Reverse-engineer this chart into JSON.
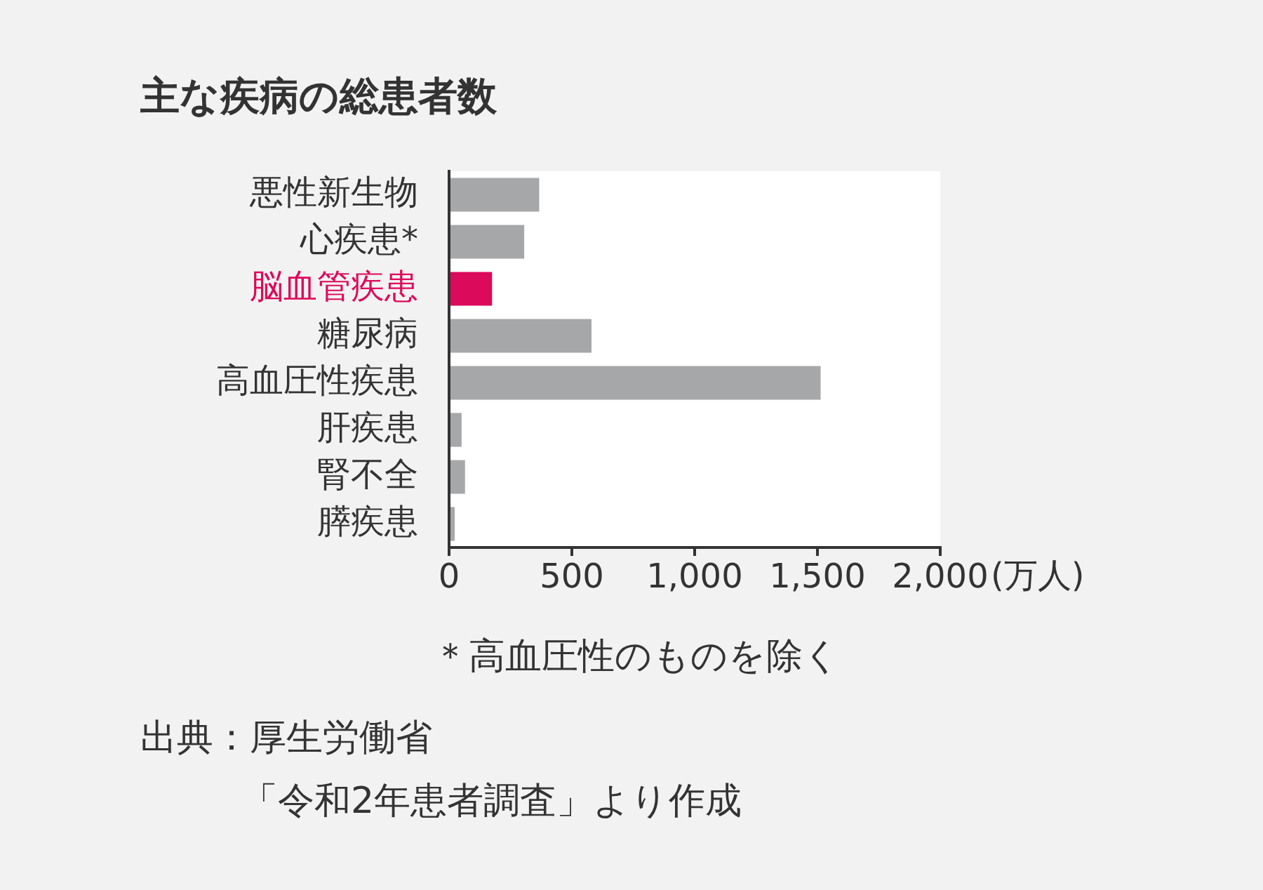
{
  "chart_data": {
    "type": "bar",
    "orientation": "horizontal",
    "title": "主な疾病の総患者数",
    "xlabel": "(万人)",
    "categories": [
      "悪性新生物",
      "心疾患*",
      "脳血管疾患",
      "糖尿病",
      "高血圧性疾患",
      "肝疾患",
      "腎不全",
      "膵疾患"
    ],
    "values": [
      367,
      306,
      175,
      580,
      1513,
      51,
      65,
      23
    ],
    "colors": [
      "#a6a7a9",
      "#a6a7a9",
      "#dc0a5a",
      "#a6a7a9",
      "#a6a7a9",
      "#a6a7a9",
      "#a6a7a9",
      "#a6a7a9"
    ],
    "xlim": [
      0,
      2000
    ],
    "xticks": [
      0,
      500,
      {
        "value": 1000,
        "label": "1,000"
      },
      {
        "value": 1500,
        "label": "1,500"
      },
      {
        "value": 2000,
        "label": "2,000"
      }
    ],
    "grid": false,
    "legend": false,
    "annotations": [
      "＊高血圧性のものを除く",
      "出典：厚生労働省",
      "「令和2年患者調査」より作成"
    ]
  }
}
